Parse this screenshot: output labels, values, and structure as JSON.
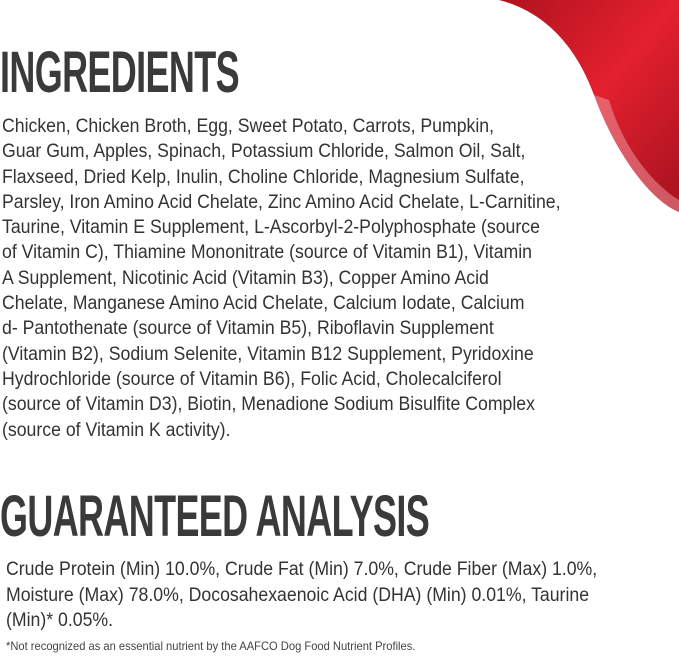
{
  "ingredients": {
    "title": "INGREDIENTS",
    "lines": [
      "Chicken, Chicken Broth, Egg, Sweet Potato, Carrots, Pumpkin,",
      "Guar Gum, Apples, Spinach, Potassium Chloride, Salmon Oil, Salt,",
      "Flaxseed, Dried Kelp, Inulin, Choline Chloride, Magnesium Sulfate,",
      "Parsley, Iron Amino Acid Chelate, Zinc Amino Acid Chelate, L-Carnitine,",
      "Taurine, Vitamin E Supplement, L-Ascorbyl-2-Polyphosphate (source",
      "of Vitamin C), Thiamine Mononitrate (source of Vitamin B1), Vitamin",
      "A Supplement, Nicotinic Acid (Vitamin B3), Copper Amino Acid",
      "Chelate, Manganese Amino Acid Chelate, Calcium Iodate, Calcium",
      "d- Pantothenate (source of Vitamin B5), Riboflavin Supplement",
      "(Vitamin B2), Sodium Selenite, Vitamin B12 Supplement, Pyridoxine",
      "Hydrochloride (source of Vitamin B6), Folic Acid, Cholecalciferol",
      "(source of Vitamin D3), Biotin, Menadione Sodium Bisulfite Complex",
      "(source of Vitamin K activity)."
    ]
  },
  "guaranteed_analysis": {
    "title": "GUARANTEED ANALYSIS",
    "lines": [
      "Crude Protein (Min) 10.0%, Crude Fat (Min) 7.0%, Crude Fiber (Max) 1.0%,",
      "Moisture (Max) 78.0%, Docosahexaenoic Acid (DHA) (Min) 0.01%, Taurine",
      "(Min)* 0.05%."
    ],
    "footnote": "*Not recognized as an essential nutrient by the AAFCO Dog Food Nutrient Profiles."
  },
  "colors": {
    "accent": "#d81e2c",
    "accent_dark": "#a5121f",
    "text": "#333333"
  }
}
